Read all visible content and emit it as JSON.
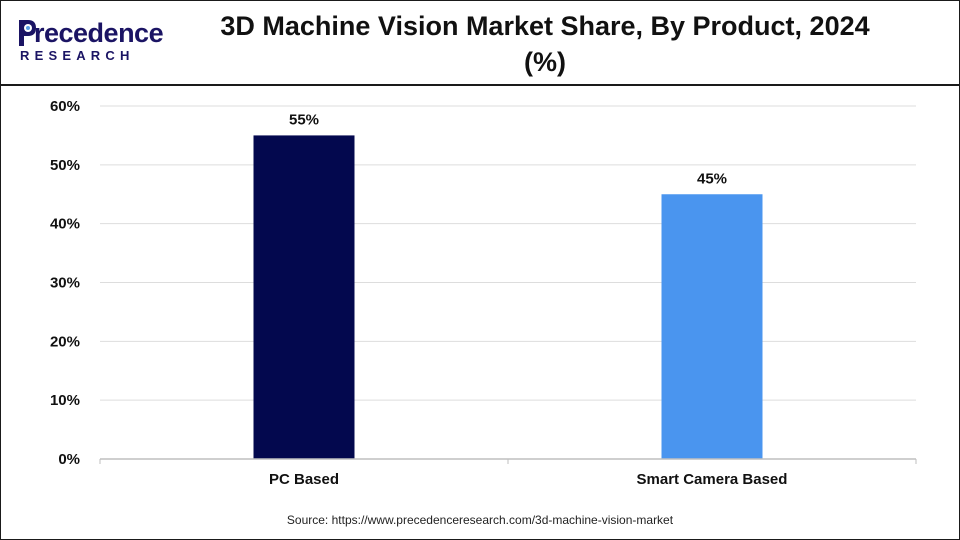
{
  "logo": {
    "word": "recedence",
    "initial": "P",
    "sub": "RESEARCH"
  },
  "title_line1": "3D Machine Vision Market Share, By Product, 2024",
  "title_line2": "(%)",
  "source": "Source: https://www.precedenceresearch.com/3d-machine-vision-market",
  "chart_data": {
    "type": "bar",
    "categories": [
      "PC Based",
      "Smart Camera Based"
    ],
    "values": [
      55,
      45
    ],
    "value_labels": [
      "55%",
      "45%"
    ],
    "colors": [
      "#03084e",
      "#4a95ef"
    ],
    "title": "3D Machine Vision Market Share, By Product, 2024 (%)",
    "xlabel": "",
    "ylabel": "",
    "ylim": [
      0,
      60
    ],
    "yticks": [
      0,
      10,
      20,
      30,
      40,
      50,
      60
    ],
    "ytick_labels": [
      "0%",
      "10%",
      "20%",
      "30%",
      "40%",
      "50%",
      "60%"
    ],
    "grid": true,
    "legend": "none"
  }
}
